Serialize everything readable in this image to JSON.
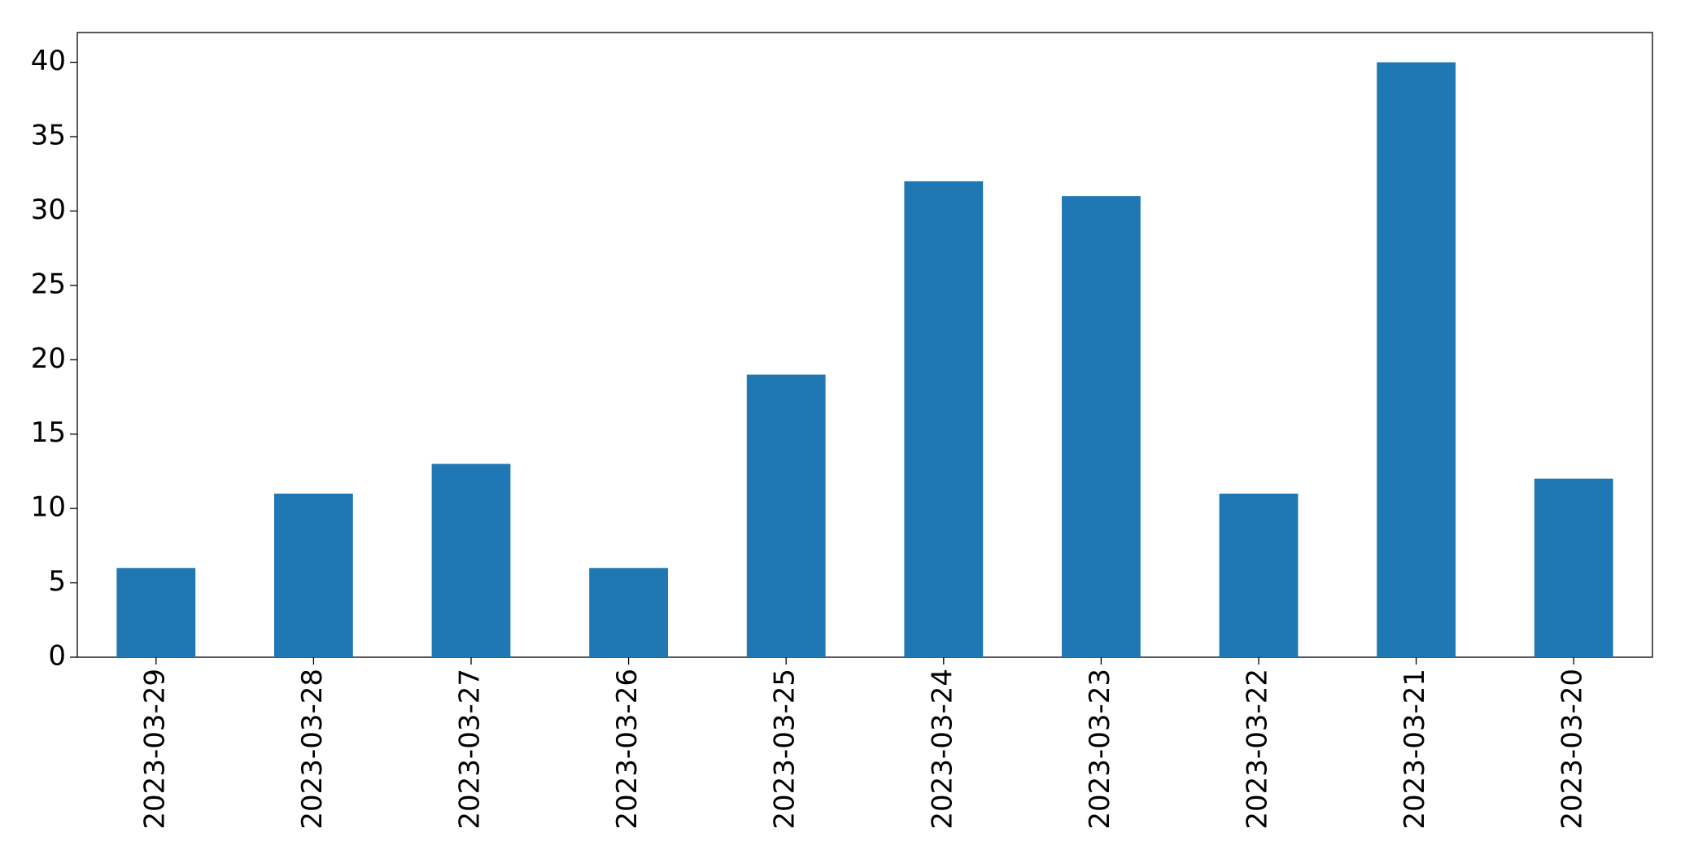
{
  "chart_data": {
    "type": "bar",
    "categories": [
      "2023-03-29",
      "2023-03-28",
      "2023-03-27",
      "2023-03-26",
      "2023-03-25",
      "2023-03-24",
      "2023-03-23",
      "2023-03-22",
      "2023-03-21",
      "2023-03-20"
    ],
    "values": [
      6,
      11,
      13,
      6,
      19,
      32,
      31,
      11,
      40,
      12
    ],
    "color": "#1f77b4",
    "ylim": [
      0,
      42
    ],
    "yticks": [
      0,
      5,
      10,
      15,
      20,
      25,
      30,
      35,
      40
    ],
    "grid": false
  }
}
